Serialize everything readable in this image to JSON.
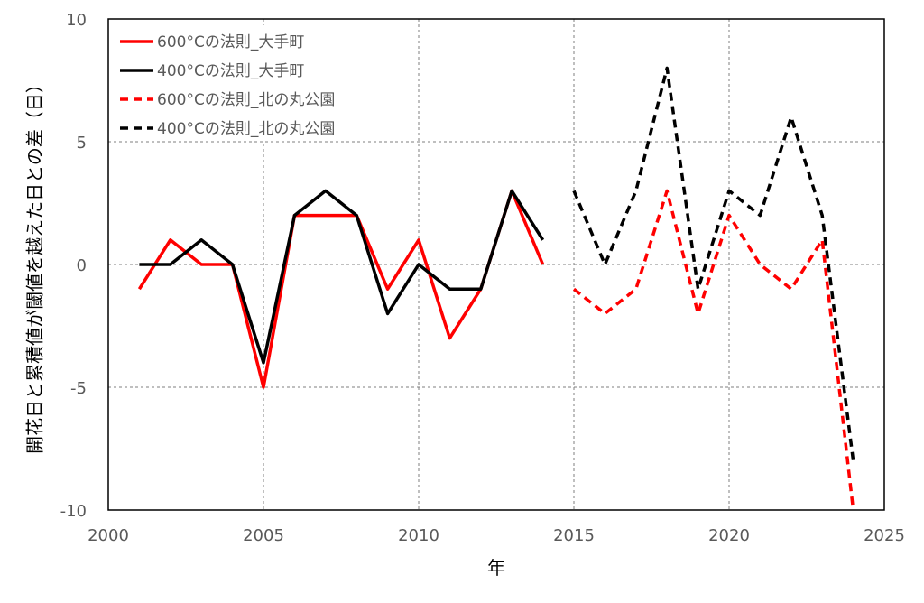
{
  "chart_data": {
    "type": "line",
    "title": "",
    "xlabel": "年",
    "ylabel": "開花日と累積値が閾値を越えた日との差（日）",
    "xlim": [
      2000,
      2025
    ],
    "ylim": [
      -10,
      10
    ],
    "xticks": [
      2000,
      2005,
      2010,
      2015,
      2020,
      2025
    ],
    "yticks": [
      10,
      5,
      0,
      -5,
      -10
    ],
    "grid": true,
    "legend_position": "top-left",
    "series": [
      {
        "name": "600°Cの法則_大手町",
        "color": "#ff0000",
        "dash": "solid",
        "x": [
          2001,
          2002,
          2003,
          2004,
          2005,
          2006,
          2007,
          2008,
          2009,
          2010,
          2011,
          2012,
          2013,
          2014
        ],
        "y": [
          -1,
          1,
          0,
          0,
          -5,
          2,
          2,
          2,
          -1,
          1,
          -3,
          -1,
          3,
          0
        ]
      },
      {
        "name": "400°Cの法則_大手町",
        "color": "#000000",
        "dash": "solid",
        "x": [
          2001,
          2002,
          2003,
          2004,
          2005,
          2006,
          2007,
          2008,
          2009,
          2010,
          2011,
          2012,
          2013,
          2014
        ],
        "y": [
          0,
          0,
          1,
          0,
          -4,
          2,
          3,
          2,
          -2,
          0,
          -1,
          -1,
          3,
          1
        ]
      },
      {
        "name": "600°Cの法則_北の丸公園",
        "color": "#ff0000",
        "dash": "dashed",
        "x": [
          2015,
          2016,
          2017,
          2018,
          2019,
          2020,
          2021,
          2022,
          2023,
          2024
        ],
        "y": [
          -1,
          -2,
          -1,
          3,
          -2,
          2,
          0,
          -1,
          1,
          -10
        ]
      },
      {
        "name": "400°Cの法則_北の丸公園",
        "color": "#000000",
        "dash": "dashed",
        "x": [
          2015,
          2016,
          2017,
          2018,
          2019,
          2020,
          2021,
          2022,
          2023,
          2024
        ],
        "y": [
          3,
          0,
          3,
          8,
          -1,
          3,
          2,
          6,
          2,
          -8
        ]
      }
    ]
  }
}
